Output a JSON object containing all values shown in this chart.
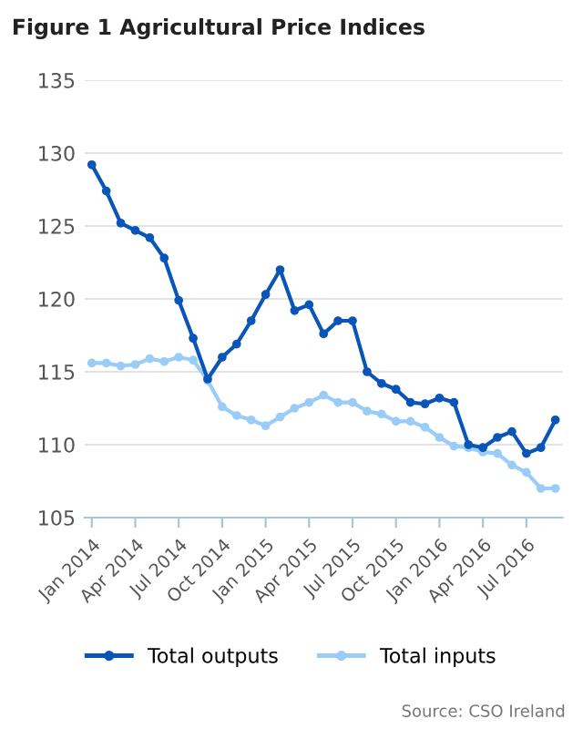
{
  "chart_data": {
    "type": "line",
    "title": "Figure 1 Agricultural Price Indices",
    "categories": [
      "Jan 2014",
      null,
      null,
      "Apr 2014",
      null,
      null,
      "Jul 2014",
      null,
      null,
      "Oct 2014",
      null,
      null,
      "Jan 2015",
      null,
      null,
      "Apr 2015",
      null,
      null,
      "Jul 2015",
      null,
      null,
      "Oct 2015",
      null,
      null,
      "Jan 2016",
      null,
      null,
      "Apr 2016",
      null,
      null,
      "Jul 2016",
      null,
      null
    ],
    "series": [
      {
        "name": "Total outputs",
        "color": "#0a55b8",
        "marker": "circle",
        "values": [
          129.2,
          127.4,
          125.2,
          124.7,
          124.2,
          122.8,
          119.9,
          117.3,
          114.5,
          116.0,
          116.9,
          118.5,
          120.3,
          122.0,
          119.2,
          119.6,
          117.6,
          118.5,
          118.5,
          115.0,
          114.2,
          113.8,
          112.9,
          112.8,
          113.2,
          112.9,
          110.0,
          109.8,
          110.5,
          110.9,
          109.4,
          109.8,
          111.7
        ]
      },
      {
        "name": "Total inputs",
        "color": "#99cdf8",
        "marker": "circle",
        "values": [
          115.6,
          115.6,
          115.4,
          115.5,
          115.9,
          115.7,
          116.0,
          115.8,
          114.4,
          112.6,
          112.0,
          111.7,
          111.3,
          111.9,
          112.5,
          112.9,
          113.4,
          112.9,
          112.9,
          112.3,
          112.1,
          111.6,
          111.6,
          111.2,
          110.5,
          109.9,
          109.8,
          109.5,
          109.4,
          108.6,
          108.1,
          107.0,
          107.0
        ]
      }
    ],
    "ylim": [
      105,
      135
    ],
    "yticks": [
      105,
      110,
      115,
      120,
      125,
      130,
      135
    ],
    "grid": "y",
    "legend": "bottom",
    "line_style": "solid",
    "annotations": [
      "Source: CSO Ireland"
    ]
  }
}
